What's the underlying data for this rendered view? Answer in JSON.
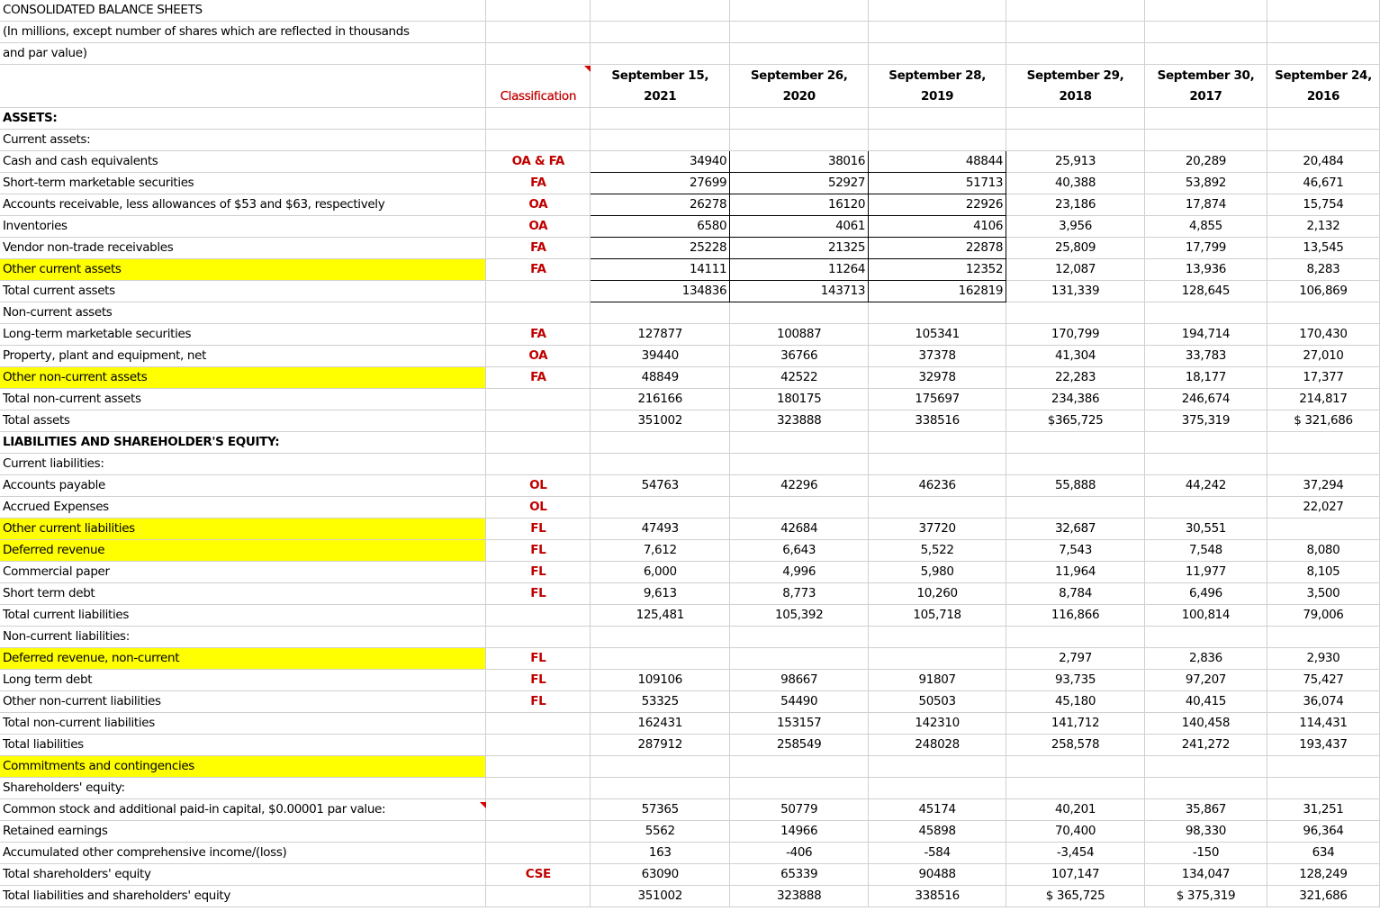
{
  "title_lines": [
    "CONSOLIDATED BALANCE SHEETS",
    "(In millions, except number of shares which are reflected in thousands",
    "and par value)"
  ],
  "header": {
    "classification": "Classification",
    "dates_top": [
      "September 15,",
      "September 26,",
      "September 28,",
      "September 29,",
      "September 30,",
      "September 24,"
    ],
    "dates_bottom": [
      "2021",
      "2020",
      "2019",
      "2018",
      "2017",
      "2016"
    ]
  },
  "rows": [
    {
      "label": "ASSETS:",
      "cls": "",
      "values": [
        "",
        "",
        "",
        "",
        "",
        ""
      ]
    },
    {
      "label": "Current assets:",
      "cls": "",
      "values": [
        "",
        "",
        "",
        "",
        "",
        ""
      ]
    },
    {
      "label": "Cash and cash equivalents",
      "cls": "OA & FA",
      "values": [
        "34940",
        "38016",
        "48844",
        "25,913",
        "20,289",
        "20,484"
      ]
    },
    {
      "label": "Short-term marketable securities",
      "cls": "FA",
      "values": [
        "27699",
        "52927",
        "51713",
        "40,388",
        "53,892",
        "46,671"
      ]
    },
    {
      "label": "Accounts receivable, less allowances of $53 and $63, respectively",
      "cls": "OA",
      "values": [
        "26278",
        "16120",
        "22926",
        "23,186",
        "17,874",
        "15,754"
      ]
    },
    {
      "label": "Inventories",
      "cls": "OA",
      "values": [
        "6580",
        "4061",
        "4106",
        "3,956",
        "4,855",
        "2,132"
      ]
    },
    {
      "label": "Vendor non-trade receivables",
      "cls": "FA",
      "values": [
        "25228",
        "21325",
        "22878",
        "25,809",
        "17,799",
        "13,545"
      ]
    },
    {
      "label": "Other current assets",
      "cls": "FA",
      "values": [
        "14111",
        "11264",
        "12352",
        "12,087",
        "13,936",
        "8,283"
      ]
    },
    {
      "label": "Total current assets",
      "cls": "",
      "values": [
        "134836",
        "143713",
        "162819",
        "131,339",
        "128,645",
        "106,869"
      ]
    },
    {
      "label": "Non-current assets",
      "cls": "",
      "values": [
        "",
        "",
        "",
        "",
        "",
        ""
      ]
    },
    {
      "label": "Long-term marketable securities",
      "cls": "FA",
      "values": [
        "127877",
        "100887",
        "105341",
        "170,799",
        "194,714",
        "170,430"
      ]
    },
    {
      "label": "Property, plant and equipment, net",
      "cls": "OA",
      "values": [
        "39440",
        "36766",
        "37378",
        "41,304",
        "33,783",
        "27,010"
      ]
    },
    {
      "label": "Other non-current assets",
      "cls": "FA",
      "values": [
        "48849",
        "42522",
        "32978",
        "22,283",
        "18,177",
        "17,377"
      ]
    },
    {
      "label": "Total non-current assets",
      "cls": "",
      "values": [
        "216166",
        "180175",
        "175697",
        "234,386",
        "246,674",
        "214,817"
      ]
    },
    {
      "label": "Total assets",
      "cls": "",
      "values": [
        "351002",
        "323888",
        "338516",
        "$365,725",
        "375,319",
        "$ 321,686"
      ]
    },
    {
      "label": "LIABILITIES AND SHAREHOLDER'S EQUITY:",
      "cls": "",
      "values": [
        "",
        "",
        "",
        "",
        "",
        ""
      ]
    },
    {
      "label": "Current liabilities:",
      "cls": "",
      "values": [
        "",
        "",
        "",
        "",
        "",
        ""
      ]
    },
    {
      "label": "Accounts payable",
      "cls": "OL",
      "values": [
        "54763",
        "42296",
        "46236",
        "55,888",
        "44,242",
        "37,294"
      ]
    },
    {
      "label": "Accrued Expenses",
      "cls": "OL",
      "values": [
        "",
        "",
        "",
        "",
        "",
        "22,027"
      ]
    },
    {
      "label": "Other current liabilities",
      "cls": "FL",
      "values": [
        "47493",
        "42684",
        "37720",
        "32,687",
        "30,551",
        ""
      ]
    },
    {
      "label": "Deferred revenue",
      "cls": "FL",
      "values": [
        "7,612",
        "6,643",
        "5,522",
        "7,543",
        "7,548",
        "8,080"
      ]
    },
    {
      "label": "Commercial paper",
      "cls": "FL",
      "values": [
        "6,000",
        "4,996",
        "5,980",
        "11,964",
        "11,977",
        "8,105"
      ]
    },
    {
      "label": "Short term debt",
      "cls": "FL",
      "values": [
        "9,613",
        "8,773",
        "10,260",
        "8,784",
        "6,496",
        "3,500"
      ]
    },
    {
      "label": "Total current liabilities",
      "cls": "",
      "values": [
        "125,481",
        "105,392",
        "105,718",
        "116,866",
        "100,814",
        "79,006"
      ]
    },
    {
      "label": "Non-current liabilities:",
      "cls": "",
      "values": [
        "",
        "",
        "",
        "",
        "",
        ""
      ]
    },
    {
      "label": "Deferred revenue, non-current",
      "cls": "FL",
      "values": [
        "",
        "",
        "",
        "2,797",
        "2,836",
        "2,930"
      ]
    },
    {
      "label": "Long term debt",
      "cls": "FL",
      "values": [
        "109106",
        "98667",
        "91807",
        "93,735",
        "97,207",
        "75,427"
      ]
    },
    {
      "label": "Other non-current liabilities",
      "cls": "FL",
      "values": [
        "53325",
        "54490",
        "50503",
        "45,180",
        "40,415",
        "36,074"
      ]
    },
    {
      "label": "Total non-current liabilities",
      "cls": "",
      "values": [
        "162431",
        "153157",
        "142310",
        "141,712",
        "140,458",
        "114,431"
      ]
    },
    {
      "label": "Total liabilities",
      "cls": "",
      "values": [
        "287912",
        "258549",
        "248028",
        "258,578",
        "241,272",
        "193,437"
      ]
    },
    {
      "label": "Commitments and contingencies",
      "cls": "",
      "values": [
        "",
        "",
        "",
        "",
        "",
        ""
      ]
    },
    {
      "label": "Shareholders' equity:",
      "cls": "",
      "values": [
        "",
        "",
        "",
        "",
        "",
        ""
      ]
    },
    {
      "label": "Common stock and additional paid-in capital, $0.00001 par value:",
      "cls": "",
      "values": [
        "57365",
        "50779",
        "45174",
        "40,201",
        "35,867",
        "31,251"
      ]
    },
    {
      "label": "Retained earnings",
      "cls": "",
      "values": [
        "5562",
        "14966",
        "45898",
        "70,400",
        "98,330",
        "96,364"
      ]
    },
    {
      "label": "Accumulated other comprehensive income/(loss)",
      "cls": "",
      "values": [
        "163",
        "-406",
        "-584",
        "-3,454",
        "-150",
        "634"
      ]
    },
    {
      "label": "Total shareholders' equity",
      "cls": "CSE",
      "values": [
        "63090",
        "65339",
        "90488",
        "107,147",
        "134,047",
        "128,249"
      ]
    },
    {
      "label": "Total liabilities and shareholders' equity",
      "cls": "",
      "values": [
        "351002",
        "323888",
        "338516",
        "$ 365,725",
        "$ 375,319",
        "321,686"
      ]
    }
  ],
  "highlight_color": "#ffff00",
  "classification_color": "#c00000"
}
